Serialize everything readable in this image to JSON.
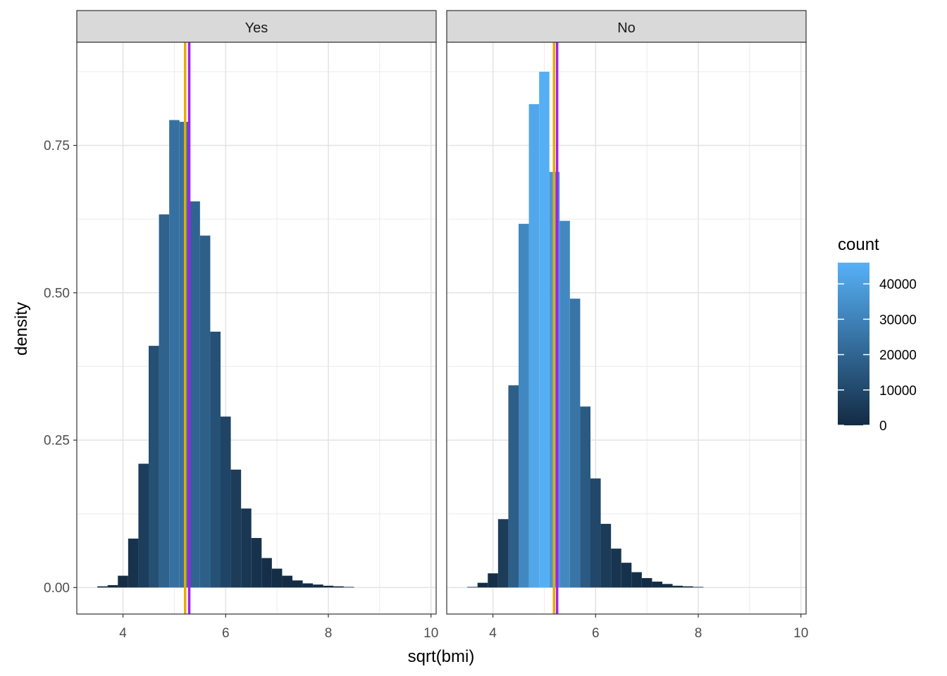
{
  "chart_data": {
    "type": "bar",
    "xlabel": "sqrt(bmi)",
    "ylabel": "density",
    "xlim": [
      3.1,
      10.1
    ],
    "ylim": [
      -0.045,
      0.925
    ],
    "x_ticks": [
      4,
      6,
      8,
      10
    ],
    "y_ticks": [
      0.0,
      0.25,
      0.5,
      0.75
    ],
    "y_tick_labels": [
      "0.00",
      "0.25",
      "0.50",
      "0.75"
    ],
    "grid": true,
    "bin_width": 0.2,
    "legend": {
      "title": "count",
      "placement": "right",
      "range": [
        0,
        46000
      ],
      "ticks": [
        0,
        10000,
        20000,
        30000,
        40000
      ],
      "tick_labels": [
        "0",
        "10000",
        "20000",
        "30000",
        "40000"
      ],
      "low_color": "#132B43",
      "high_color": "#56B1F7"
    },
    "panels": [
      {
        "name": "Yes",
        "mean_line": {
          "x": 5.29,
          "color": "#A020F0"
        },
        "median_line": {
          "x": 5.21,
          "color": "#E6AB02"
        },
        "bins": [
          {
            "x": 3.6,
            "density": 0.002,
            "count": 60
          },
          {
            "x": 3.8,
            "density": 0.004,
            "count": 120
          },
          {
            "x": 4.0,
            "density": 0.02,
            "count": 600
          },
          {
            "x": 4.2,
            "density": 0.083,
            "count": 2500
          },
          {
            "x": 4.4,
            "density": 0.21,
            "count": 6300
          },
          {
            "x": 4.6,
            "density": 0.41,
            "count": 12300
          },
          {
            "x": 4.8,
            "density": 0.633,
            "count": 19000
          },
          {
            "x": 5.0,
            "density": 0.793,
            "count": 23800
          },
          {
            "x": 5.2,
            "density": 0.79,
            "count": 23700
          },
          {
            "x": 5.4,
            "density": 0.655,
            "count": 19700
          },
          {
            "x": 5.6,
            "density": 0.597,
            "count": 17900
          },
          {
            "x": 5.8,
            "density": 0.434,
            "count": 13000
          },
          {
            "x": 6.0,
            "density": 0.29,
            "count": 8700
          },
          {
            "x": 6.2,
            "density": 0.2,
            "count": 6000
          },
          {
            "x": 6.4,
            "density": 0.134,
            "count": 4000
          },
          {
            "x": 6.6,
            "density": 0.084,
            "count": 2500
          },
          {
            "x": 6.8,
            "density": 0.05,
            "count": 1500
          },
          {
            "x": 7.0,
            "density": 0.032,
            "count": 960
          },
          {
            "x": 7.2,
            "density": 0.02,
            "count": 600
          },
          {
            "x": 7.4,
            "density": 0.012,
            "count": 360
          },
          {
            "x": 7.6,
            "density": 0.007,
            "count": 210
          },
          {
            "x": 7.8,
            "density": 0.005,
            "count": 150
          },
          {
            "x": 8.0,
            "density": 0.003,
            "count": 90
          },
          {
            "x": 8.2,
            "density": 0.002,
            "count": 60
          },
          {
            "x": 8.4,
            "density": 0.001,
            "count": 30
          }
        ]
      },
      {
        "name": "No",
        "mean_line": {
          "x": 5.25,
          "color": "#A020F0"
        },
        "median_line": {
          "x": 5.19,
          "color": "#E6AB02"
        },
        "bins": [
          {
            "x": 3.6,
            "density": 0.001,
            "count": 60
          },
          {
            "x": 3.8,
            "density": 0.008,
            "count": 400
          },
          {
            "x": 4.0,
            "density": 0.024,
            "count": 1250
          },
          {
            "x": 4.2,
            "density": 0.116,
            "count": 6000
          },
          {
            "x": 4.4,
            "density": 0.343,
            "count": 17800
          },
          {
            "x": 4.6,
            "density": 0.617,
            "count": 32000
          },
          {
            "x": 4.8,
            "density": 0.82,
            "count": 42500
          },
          {
            "x": 5.0,
            "density": 0.875,
            "count": 45400
          },
          {
            "x": 5.2,
            "density": 0.705,
            "count": 36500
          },
          {
            "x": 5.4,
            "density": 0.622,
            "count": 32300
          },
          {
            "x": 5.6,
            "density": 0.49,
            "count": 25400
          },
          {
            "x": 5.8,
            "density": 0.307,
            "count": 15900
          },
          {
            "x": 6.0,
            "density": 0.185,
            "count": 9600
          },
          {
            "x": 6.2,
            "density": 0.108,
            "count": 5600
          },
          {
            "x": 6.4,
            "density": 0.066,
            "count": 3400
          },
          {
            "x": 6.6,
            "density": 0.042,
            "count": 2200
          },
          {
            "x": 6.8,
            "density": 0.026,
            "count": 1350
          },
          {
            "x": 7.0,
            "density": 0.016,
            "count": 830
          },
          {
            "x": 7.2,
            "density": 0.01,
            "count": 520
          },
          {
            "x": 7.4,
            "density": 0.006,
            "count": 310
          },
          {
            "x": 7.6,
            "density": 0.003,
            "count": 160
          },
          {
            "x": 7.8,
            "density": 0.002,
            "count": 100
          },
          {
            "x": 8.0,
            "density": 0.001,
            "count": 50
          }
        ]
      }
    ]
  }
}
